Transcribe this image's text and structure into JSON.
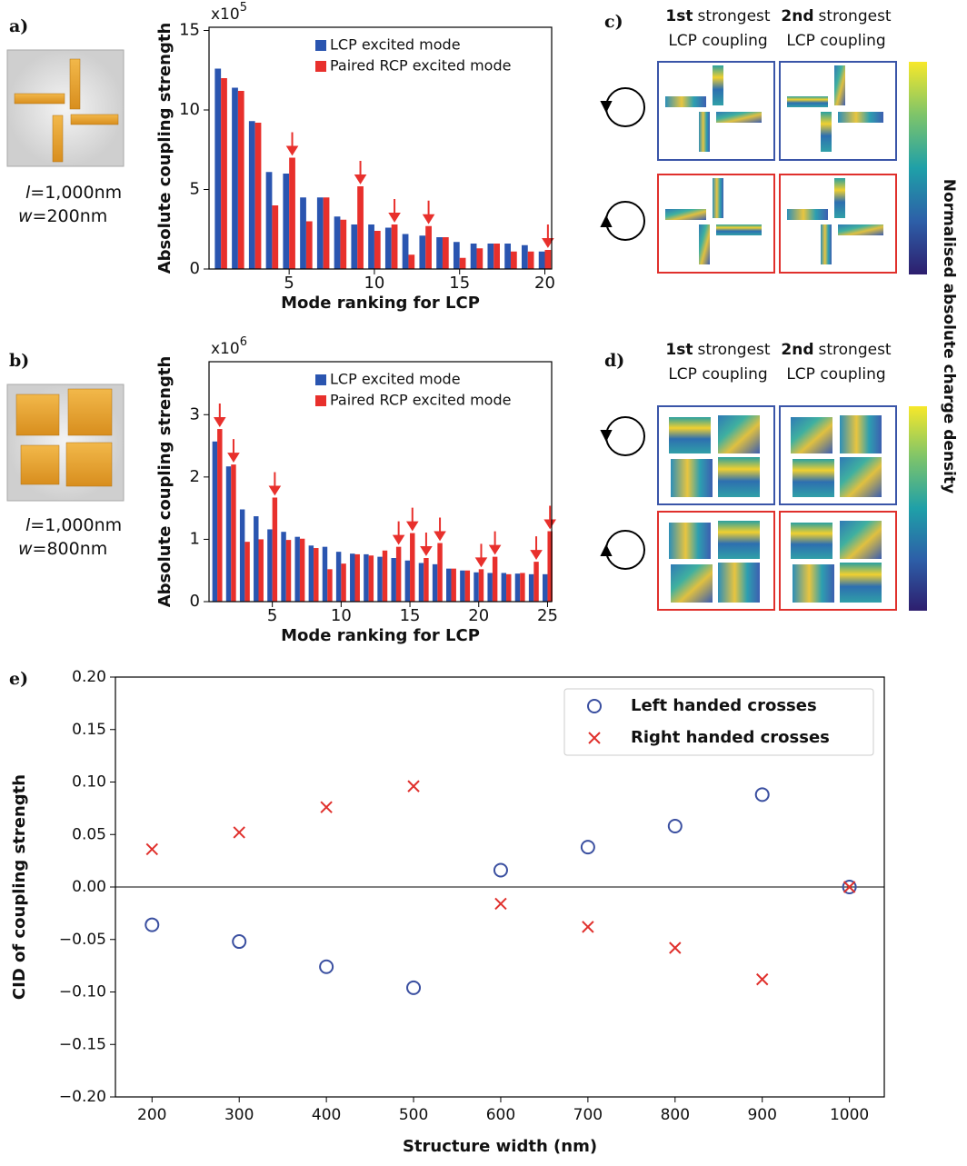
{
  "panel_labels": [
    "a)",
    "b)",
    "c)",
    "d)",
    "e)"
  ],
  "structures": [
    {
      "symbol_l": "l",
      "length": "=1,000nm",
      "symbol_w": "w",
      "width": "=200nm"
    },
    {
      "symbol_l": "l",
      "length": "=1,000nm",
      "symbol_w": "w",
      "width": "=800nm"
    }
  ],
  "field_maps": [
    {
      "columns": [
        {
          "rank": "1st",
          "rest": "strongest",
          "line2": "LCP coupling"
        },
        {
          "rank": "2nd",
          "rest": "strongest",
          "line2": "LCP coupling"
        }
      ]
    },
    {
      "columns": [
        {
          "rank": "1st",
          "rest": "strongest",
          "line2": "LCP coupling"
        },
        {
          "rank": "2nd",
          "rest": "strongest",
          "line2": "LCP coupling"
        }
      ]
    }
  ],
  "colorbar_label": "Normalised absolute charge density",
  "chart_data": [
    {
      "type": "bar",
      "y_multiplier": {
        "base": "x10",
        "exponent": "5"
      },
      "xlabel": "Mode ranking for LCP",
      "ylabel": "Absolute coupling strength",
      "x": [
        1,
        2,
        3,
        4,
        5,
        6,
        7,
        8,
        9,
        10,
        11,
        12,
        13,
        14,
        15,
        16,
        17,
        18,
        19,
        20
      ],
      "series": [
        {
          "name": "LCP excited mode",
          "color": "#2a55b0",
          "values": [
            12.6,
            11.4,
            9.3,
            6.1,
            6.0,
            4.5,
            4.5,
            3.3,
            2.8,
            2.8,
            2.6,
            2.2,
            2.1,
            2.0,
            1.7,
            1.6,
            1.6,
            1.6,
            1.5,
            1.1
          ]
        },
        {
          "name": "Paired RCP excited mode",
          "color": "#e8302c",
          "values": [
            12.0,
            11.2,
            9.2,
            4.0,
            7.0,
            3.0,
            4.5,
            3.1,
            5.2,
            2.4,
            2.8,
            0.9,
            2.7,
            2.0,
            0.7,
            1.3,
            1.6,
            1.1,
            1.1,
            1.2
          ]
        }
      ],
      "arrows": [
        5,
        9,
        11,
        13,
        20
      ],
      "arrow_color": "#e8302c",
      "xlim": [
        0.3,
        20.4
      ],
      "ylim": [
        0,
        15.2
      ],
      "xticks": [
        5,
        10,
        15,
        20
      ],
      "yticks": [
        0,
        5,
        10,
        15
      ]
    },
    {
      "type": "bar",
      "y_multiplier": {
        "base": "x10",
        "exponent": "6"
      },
      "xlabel": "Mode ranking for LCP",
      "ylabel": "Absolute coupling strength",
      "x": [
        1,
        2,
        3,
        4,
        5,
        6,
        7,
        8,
        9,
        10,
        11,
        12,
        13,
        14,
        15,
        16,
        17,
        18,
        19,
        20,
        21,
        22,
        23,
        24,
        25
      ],
      "series": [
        {
          "name": "LCP excited mode",
          "color": "#2a55b0",
          "values": [
            2.57,
            2.17,
            1.48,
            1.37,
            1.16,
            1.12,
            1.04,
            0.9,
            0.88,
            0.8,
            0.77,
            0.76,
            0.72,
            0.7,
            0.66,
            0.62,
            0.6,
            0.53,
            0.5,
            0.47,
            0.46,
            0.46,
            0.45,
            0.44,
            0.44
          ]
        },
        {
          "name": "Paired RCP excited mode",
          "color": "#e8302c",
          "values": [
            2.77,
            2.2,
            0.96,
            1.0,
            1.67,
            0.99,
            1.01,
            0.86,
            0.52,
            0.61,
            0.76,
            0.74,
            0.82,
            0.88,
            1.1,
            0.7,
            0.94,
            0.53,
            0.5,
            0.52,
            0.72,
            0.44,
            0.46,
            0.64,
            1.13
          ]
        }
      ],
      "arrows": [
        1,
        2,
        5,
        14,
        15,
        16,
        17,
        20,
        21,
        24,
        25
      ],
      "arrow_color": "#e8302c",
      "xlim": [
        0.4,
        25.3
      ],
      "ylim": [
        0,
        3.85
      ],
      "xticks": [
        5,
        10,
        15,
        20,
        25
      ],
      "yticks": [
        0,
        1,
        2,
        3
      ]
    },
    {
      "type": "scatter",
      "xlabel": "Structure width (nm)",
      "ylabel": "CID of coupling strength",
      "zero_line": true,
      "x": [
        200,
        300,
        400,
        500,
        600,
        700,
        800,
        900,
        1000
      ],
      "series": [
        {
          "name": "Left handed crosses",
          "color": "#3a4fa0",
          "marker": "o",
          "values": [
            -0.036,
            -0.052,
            -0.076,
            -0.096,
            0.016,
            0.038,
            0.058,
            0.088,
            0
          ]
        },
        {
          "name": "Right handed crosses",
          "color": "#e0302c",
          "marker": "x",
          "values": [
            0.036,
            0.052,
            0.076,
            0.096,
            -0.016,
            -0.038,
            -0.058,
            -0.088,
            0
          ]
        }
      ],
      "legend": "upper right",
      "xlim": [
        158,
        1040
      ],
      "ylim": [
        -0.2,
        0.2
      ],
      "xticks": [
        200,
        300,
        400,
        500,
        600,
        700,
        800,
        900,
        1000
      ],
      "yticks": [
        {
          "value": 0.2,
          "label": "0.20"
        },
        {
          "value": 0.15,
          "label": "0.15"
        },
        {
          "value": 0.1,
          "label": "0.10"
        },
        {
          "value": 0.05,
          "label": "0.05"
        },
        {
          "value": 0,
          "label": "0.00"
        },
        {
          "value": -0.05,
          "label": "−0.05"
        },
        {
          "value": -0.1,
          "label": "−0.10"
        },
        {
          "value": -0.15,
          "label": "−0.15"
        },
        {
          "value": -0.2,
          "label": "−0.20"
        }
      ]
    }
  ]
}
